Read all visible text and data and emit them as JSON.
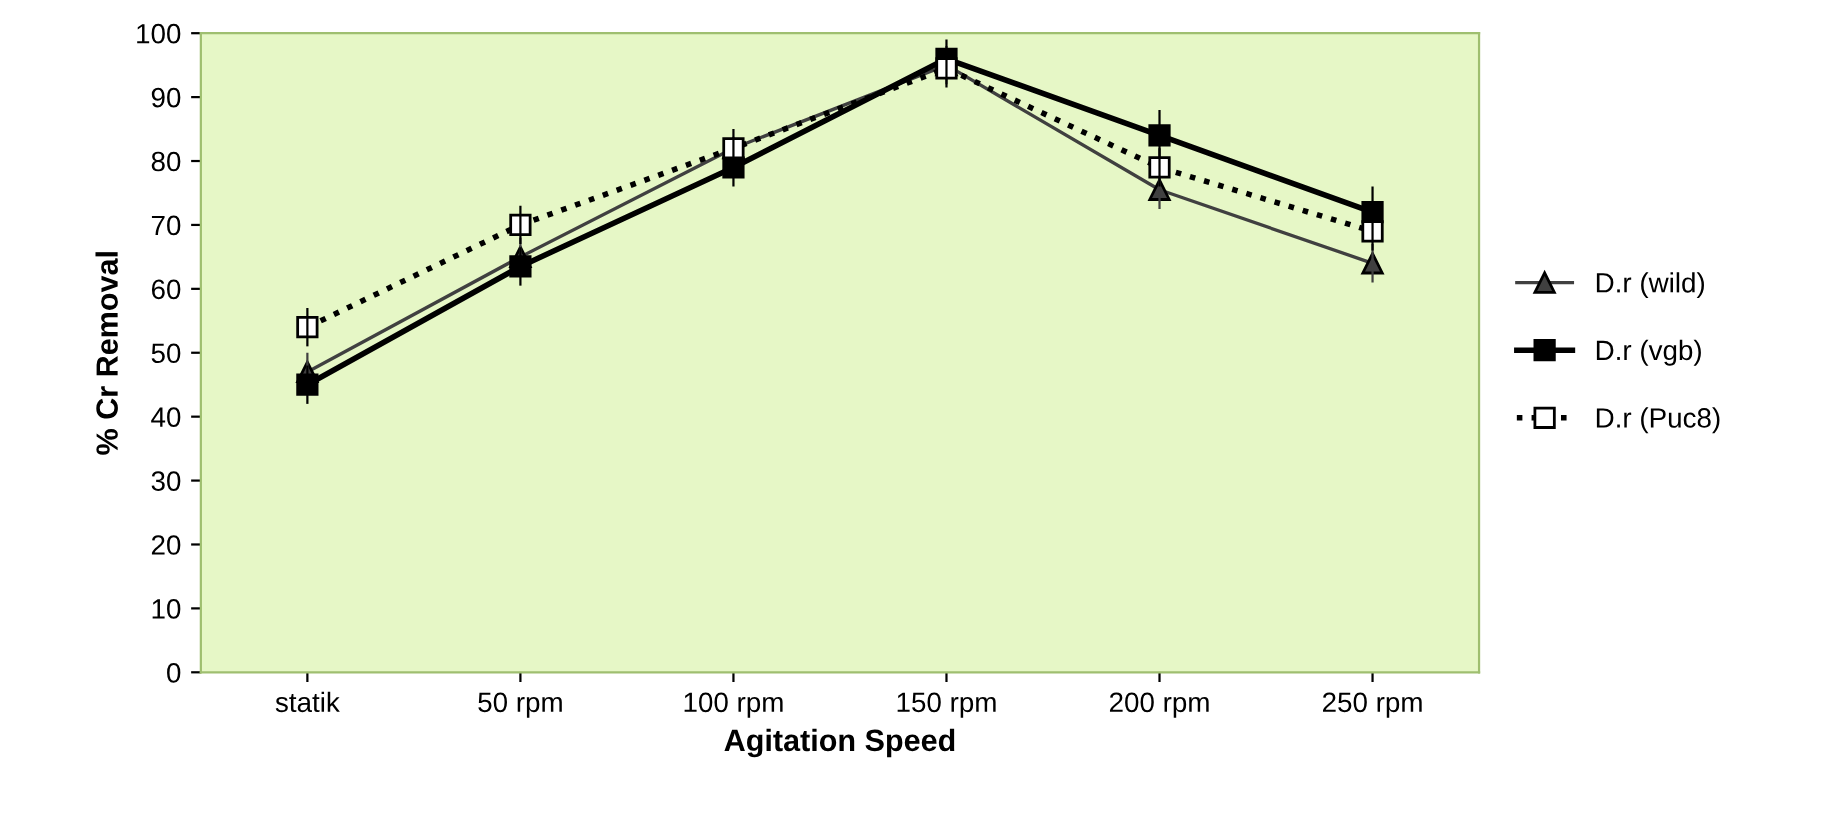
{
  "chart_data": {
    "type": "line",
    "xlabel": "Agitation Speed",
    "ylabel": "% Cr Removal",
    "categories": [
      "statik",
      "50 rpm",
      "100 rpm",
      "150 rpm",
      "200 rpm",
      "250 rpm"
    ],
    "series": [
      {
        "name": "D.r (wild)",
        "color": "#404040",
        "marker": "triangle",
        "line_style": "solid",
        "values": [
          47,
          65,
          82,
          95,
          75.5,
          64
        ],
        "errors": [
          3,
          3,
          null,
          3,
          3,
          3
        ]
      },
      {
        "name": "D.r (vgb)",
        "color": "#000000",
        "marker": "square",
        "line_style": "solid",
        "values": [
          45,
          63.5,
          79,
          96,
          84,
          72
        ],
        "errors": [
          3,
          3,
          3,
          3,
          4,
          4
        ]
      },
      {
        "name": "D.r (Puc8)",
        "color": "#000000",
        "marker": "square",
        "line_style": "dotted",
        "values": [
          54,
          70,
          82,
          94.5,
          79,
          69
        ],
        "errors": [
          3,
          3,
          3,
          3,
          3,
          3
        ]
      }
    ],
    "ylim": [
      0,
      100
    ],
    "yticks": [
      0,
      10,
      20,
      30,
      40,
      50,
      60,
      70,
      80,
      90,
      100
    ],
    "grid": false,
    "legend": "right"
  }
}
